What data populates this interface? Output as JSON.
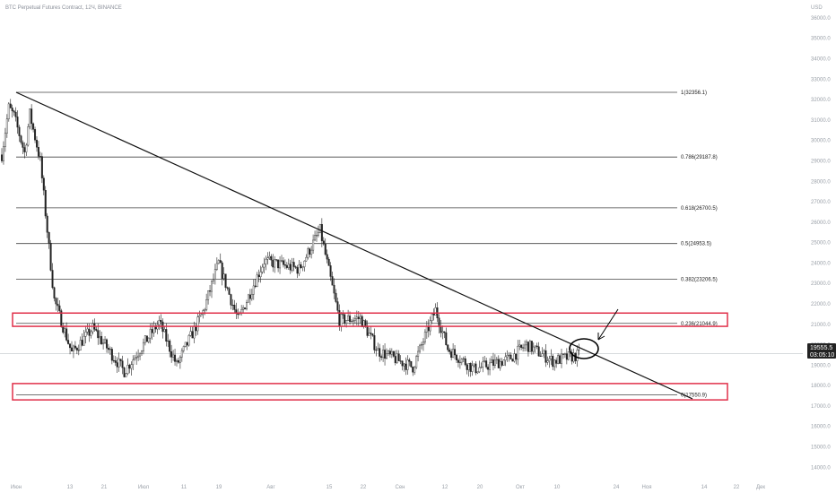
{
  "header": {
    "title": "BTC Perpetual Futures Contract, 12Ч, BINANCE"
  },
  "price_axis": {
    "unit": "USD",
    "ticks": [
      "36000.0",
      "35000.0",
      "34000.0",
      "33000.0",
      "32000.0",
      "31000.0",
      "30000.0",
      "29000.0",
      "28000.0",
      "27000.0",
      "26000.0",
      "25000.0",
      "24000.0",
      "23000.0",
      "22000.0",
      "21000.0",
      "20000.0",
      "19000.0",
      "18000.0",
      "17000.0",
      "16000.0",
      "15000.0",
      "14000.0"
    ],
    "last_price": "19555.5",
    "countdown": "03:05:10",
    "tag_color": "#222222"
  },
  "time_axis": {
    "ticks": [
      "Июн",
      "13",
      "21",
      "Июл",
      "11",
      "19",
      "Авг",
      "15",
      "22",
      "Сен",
      "12",
      "20",
      "Окт",
      "10",
      "24",
      "Ноя",
      "14",
      "22",
      "Дек"
    ]
  },
  "chart_data": {
    "type": "candlestick",
    "title": "BTC Perpetual Futures Contract, 12Ч, BINANCE",
    "y_unit": "USD",
    "ylim": [
      13400,
      36700
    ],
    "y_ticks": [
      36000,
      35000,
      34000,
      33000,
      32000,
      31000,
      30000,
      29000,
      28000,
      27000,
      26000,
      25000,
      24000,
      23000,
      22000,
      21000,
      20000,
      19000,
      18000,
      17000,
      16000,
      15000,
      14000
    ],
    "x_tick_labels": [
      "Июн",
      "13",
      "21",
      "Июл",
      "11",
      "19",
      "Авг",
      "15",
      "22",
      "Сен",
      "12",
      "20",
      "Окт",
      "10",
      "24",
      "Ноя",
      "14",
      "22",
      "Дек"
    ],
    "last_price": 19555.5,
    "key_closes": [
      {
        "t": 0,
        "close": 29300
      },
      {
        "t": 4,
        "close": 31600
      },
      {
        "t": 7,
        "close": 31200
      },
      {
        "t": 13,
        "close": 29400
      },
      {
        "t": 16,
        "close": 31300
      },
      {
        "t": 22,
        "close": 29000
      },
      {
        "t": 30,
        "close": 22200
      },
      {
        "t": 40,
        "close": 19600
      },
      {
        "t": 52,
        "close": 20800
      },
      {
        "t": 70,
        "close": 18700
      },
      {
        "t": 90,
        "close": 21100
      },
      {
        "t": 100,
        "close": 19000
      },
      {
        "t": 115,
        "close": 21600
      },
      {
        "t": 124,
        "close": 24000
      },
      {
        "t": 135,
        "close": 21200
      },
      {
        "t": 150,
        "close": 24100
      },
      {
        "t": 170,
        "close": 23700
      },
      {
        "t": 182,
        "close": 25600
      },
      {
        "t": 193,
        "close": 21200
      },
      {
        "t": 205,
        "close": 21300
      },
      {
        "t": 215,
        "close": 19700
      },
      {
        "t": 235,
        "close": 18900
      },
      {
        "t": 248,
        "close": 21700
      },
      {
        "t": 255,
        "close": 19800
      },
      {
        "t": 270,
        "close": 18800
      },
      {
        "t": 290,
        "close": 19300
      },
      {
        "t": 300,
        "close": 20000
      },
      {
        "t": 315,
        "close": 19200
      },
      {
        "t": 330,
        "close": 19500
      }
    ],
    "fib_levels": [
      {
        "label": "1(32356.1)",
        "value": 32356.1
      },
      {
        "label": "0.786(29187.8)",
        "value": 29187.8
      },
      {
        "label": "0.618(26700.5)",
        "value": 26700.5
      },
      {
        "label": "0.5(24953.5)",
        "value": 24953.5
      },
      {
        "label": "0.382(23206.5)",
        "value": 23206.5
      },
      {
        "label": "0.236(21044.9)",
        "value": 21044.9
      },
      {
        "label": "0(17550.9)",
        "value": 17550.9
      }
    ],
    "trendline": {
      "start": {
        "t": 0,
        "price": 32356.1
      },
      "end": {
        "t": 380,
        "price": 17350
      }
    },
    "zones": [
      {
        "from": 20900,
        "to": 21550,
        "color": "#e0304a"
      },
      {
        "from": 17300,
        "to": 18100,
        "color": "#e0304a"
      }
    ],
    "annotations": [
      {
        "type": "ellipse",
        "t": 320,
        "price": 19400,
        "color": "#000000"
      },
      {
        "type": "arrow",
        "t": 340,
        "price": 19750,
        "color": "#000000"
      }
    ],
    "colors": {
      "up": "#ffffff",
      "down": "#222222",
      "border": "#222222",
      "fib": "#444444"
    }
  }
}
